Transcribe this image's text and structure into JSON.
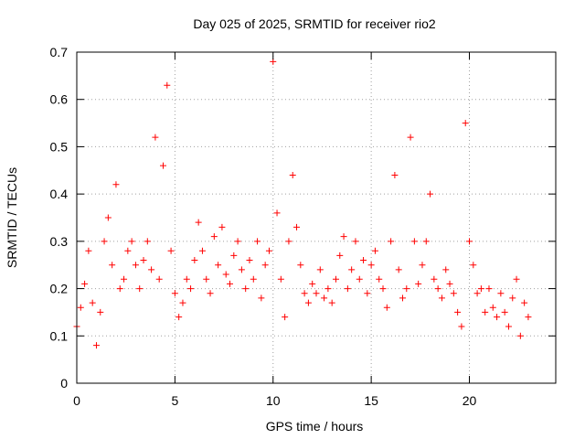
{
  "chart_data": {
    "type": "scatter",
    "title": "Day 025 of 2025, SRMTID for receiver rio2",
    "xlabel": "GPS time / hours",
    "ylabel": "SRMTID / TECUs",
    "xlim": [
      0,
      24.4
    ],
    "ylim": [
      0,
      0.7
    ],
    "x_ticks": [
      0,
      5,
      10,
      15,
      20
    ],
    "x_tick_labels": [
      "0",
      "5",
      "10",
      "15",
      "20"
    ],
    "y_ticks": [
      0,
      0.1,
      0.2,
      0.3,
      0.4,
      0.5,
      0.6,
      0.7
    ],
    "y_tick_labels": [
      "0",
      "0.1",
      "0.2",
      "0.3",
      "0.4",
      "0.5",
      "0.6",
      "0.7"
    ],
    "grid": true,
    "marker": "+",
    "color": "#ff0000",
    "series": [
      {
        "name": "SRMTID",
        "x": [
          0.0,
          0.2,
          0.4,
          0.6,
          0.8,
          1.0,
          1.2,
          1.4,
          1.6,
          1.8,
          2.0,
          2.2,
          2.4,
          2.6,
          2.8,
          3.0,
          3.2,
          3.4,
          3.6,
          3.8,
          4.0,
          4.2,
          4.4,
          4.6,
          4.8,
          5.0,
          5.2,
          5.4,
          5.6,
          5.8,
          6.0,
          6.2,
          6.4,
          6.6,
          6.8,
          7.0,
          7.2,
          7.4,
          7.6,
          7.8,
          8.0,
          8.2,
          8.4,
          8.6,
          8.8,
          9.0,
          9.2,
          9.4,
          9.6,
          9.8,
          10.0,
          10.2,
          10.4,
          10.6,
          10.8,
          11.0,
          11.2,
          11.4,
          11.6,
          11.8,
          12.0,
          12.2,
          12.4,
          12.6,
          12.8,
          13.0,
          13.2,
          13.4,
          13.6,
          13.8,
          14.0,
          14.2,
          14.4,
          14.6,
          14.8,
          15.0,
          15.2,
          15.4,
          15.6,
          15.8,
          16.0,
          16.2,
          16.4,
          16.6,
          16.8,
          17.0,
          17.2,
          17.4,
          17.6,
          17.8,
          18.0,
          18.2,
          18.4,
          18.6,
          18.8,
          19.0,
          19.2,
          19.4,
          19.6,
          19.8,
          20.0,
          20.2,
          20.4,
          20.6,
          20.8,
          21.0,
          21.2,
          21.4,
          21.6,
          21.8,
          22.0,
          22.2,
          22.4,
          22.6,
          22.8,
          23.0
        ],
        "y": [
          0.12,
          0.16,
          0.21,
          0.28,
          0.17,
          0.08,
          0.15,
          0.3,
          0.35,
          0.25,
          0.42,
          0.2,
          0.22,
          0.28,
          0.3,
          0.25,
          0.2,
          0.26,
          0.3,
          0.24,
          0.52,
          0.22,
          0.46,
          0.63,
          0.28,
          0.19,
          0.14,
          0.17,
          0.22,
          0.2,
          0.26,
          0.34,
          0.28,
          0.22,
          0.19,
          0.31,
          0.25,
          0.33,
          0.23,
          0.21,
          0.27,
          0.3,
          0.24,
          0.2,
          0.26,
          0.22,
          0.3,
          0.18,
          0.25,
          0.28,
          0.68,
          0.36,
          0.22,
          0.14,
          0.3,
          0.44,
          0.33,
          0.25,
          0.19,
          0.17,
          0.21,
          0.19,
          0.24,
          0.18,
          0.2,
          0.17,
          0.22,
          0.27,
          0.31,
          0.2,
          0.24,
          0.3,
          0.22,
          0.26,
          0.19,
          0.25,
          0.28,
          0.22,
          0.2,
          0.16,
          0.3,
          0.44,
          0.24,
          0.18,
          0.2,
          0.52,
          0.3,
          0.21,
          0.25,
          0.3,
          0.4,
          0.22,
          0.2,
          0.18,
          0.24,
          0.21,
          0.19,
          0.15,
          0.12,
          0.55,
          0.3,
          0.25,
          0.19,
          0.2,
          0.15,
          0.2,
          0.16,
          0.14,
          0.19,
          0.15,
          0.12,
          0.18,
          0.22,
          0.1,
          0.17,
          0.14
        ]
      }
    ]
  }
}
